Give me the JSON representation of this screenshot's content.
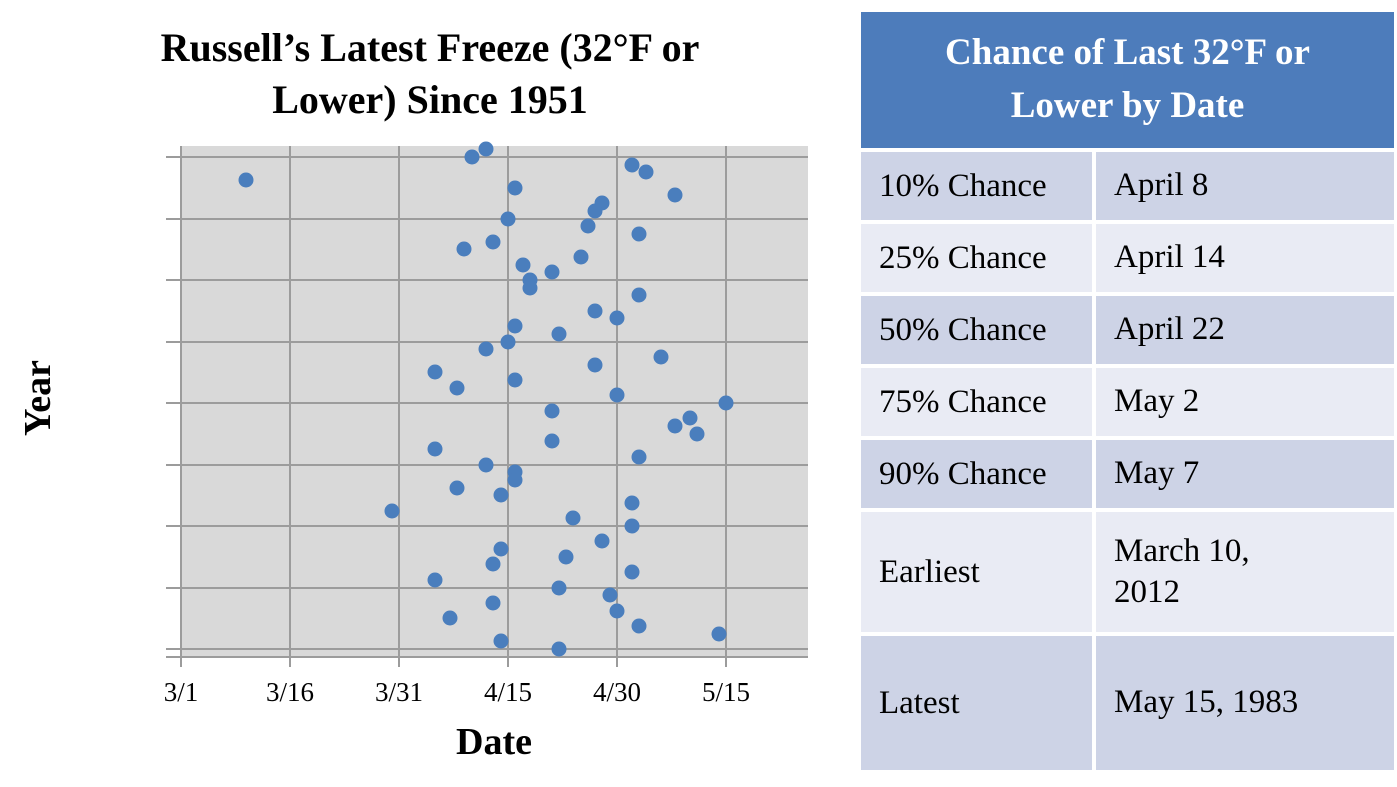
{
  "chart": {
    "title_line1": "Russell’s Latest Freeze (32°F or",
    "title_line2": "Lower) Since 1951",
    "y_axis_label": "Year",
    "x_axis_label": "Date"
  },
  "chart_data": {
    "type": "scatter",
    "title": "Russell’s Latest Freeze (32°F or Lower) Since 1951",
    "xlabel": "Date",
    "ylabel": "Year",
    "grid": true,
    "legend": false,
    "point_color": "#4a7ebd",
    "plot_bg": "#d9d9d9",
    "gridline_color": "#9c9c9c",
    "x_ticks": [
      {
        "label": "3/1",
        "day": 0
      },
      {
        "label": "3/16",
        "day": 15
      },
      {
        "label": "3/31",
        "day": 30
      },
      {
        "label": "4/15",
        "day": 45
      },
      {
        "label": "4/30",
        "day": 60
      },
      {
        "label": "5/15",
        "day": 75
      }
    ],
    "y_ticks": [
      2015,
      2007,
      1999,
      1991,
      1983,
      1975,
      1967,
      1959,
      1951
    ],
    "x_domain_note": "day = days after March 1",
    "x_domain": [
      0,
      86
    ],
    "y_domain": [
      1949.8,
      2016.4
    ],
    "points": [
      {
        "year": 2016,
        "date": "4/12",
        "day": 42
      },
      {
        "year": 2015,
        "date": "4/10",
        "day": 40
      },
      {
        "year": 2014,
        "date": "5/2",
        "day": 62
      },
      {
        "year": 2013,
        "date": "5/4",
        "day": 64
      },
      {
        "year": 2012,
        "date": "3/10",
        "day": 9
      },
      {
        "year": 2011,
        "date": "4/16",
        "day": 46
      },
      {
        "year": 2010,
        "date": "5/8",
        "day": 68
      },
      {
        "year": 2009,
        "date": "4/28",
        "day": 58
      },
      {
        "year": 2008,
        "date": "4/27",
        "day": 57
      },
      {
        "year": 2007,
        "date": "4/15",
        "day": 45
      },
      {
        "year": 2006,
        "date": "4/26",
        "day": 56
      },
      {
        "year": 2005,
        "date": "5/3",
        "day": 63
      },
      {
        "year": 2004,
        "date": "4/13",
        "day": 43
      },
      {
        "year": 2003,
        "date": "4/9",
        "day": 39
      },
      {
        "year": 2002,
        "date": "4/25",
        "day": 55
      },
      {
        "year": 2001,
        "date": "4/17",
        "day": 47
      },
      {
        "year": 2000,
        "date": "4/21",
        "day": 51
      },
      {
        "year": 1999,
        "date": "4/18",
        "day": 48
      },
      {
        "year": 1998,
        "date": "4/18",
        "day": 48
      },
      {
        "year": 1997,
        "date": "5/3",
        "day": 63
      },
      {
        "year": 1995,
        "date": "4/27",
        "day": 57
      },
      {
        "year": 1994,
        "date": "4/30",
        "day": 60
      },
      {
        "year": 1993,
        "date": "4/16",
        "day": 46
      },
      {
        "year": 1992,
        "date": "4/22",
        "day": 52
      },
      {
        "year": 1991,
        "date": "4/15",
        "day": 45
      },
      {
        "year": 1990,
        "date": "4/12",
        "day": 42
      },
      {
        "year": 1989,
        "date": "5/6",
        "day": 66
      },
      {
        "year": 1988,
        "date": "4/27",
        "day": 57
      },
      {
        "year": 1987,
        "date": "4/5",
        "day": 35
      },
      {
        "year": 1986,
        "date": "4/16",
        "day": 46
      },
      {
        "year": 1985,
        "date": "4/8",
        "day": 38
      },
      {
        "year": 1984,
        "date": "4/30",
        "day": 60
      },
      {
        "year": 1983,
        "date": "5/15",
        "day": 75
      },
      {
        "year": 1982,
        "date": "4/21",
        "day": 51
      },
      {
        "year": 1981,
        "date": "5/10",
        "day": 70
      },
      {
        "year": 1980,
        "date": "5/8",
        "day": 68
      },
      {
        "year": 1979,
        "date": "5/11",
        "day": 71
      },
      {
        "year": 1978,
        "date": "4/21",
        "day": 51
      },
      {
        "year": 1977,
        "date": "4/5",
        "day": 35
      },
      {
        "year": 1976,
        "date": "5/3",
        "day": 63
      },
      {
        "year": 1975,
        "date": "4/12",
        "day": 42
      },
      {
        "year": 1974,
        "date": "4/16",
        "day": 46
      },
      {
        "year": 1973,
        "date": "4/16",
        "day": 46
      },
      {
        "year": 1972,
        "date": "4/8",
        "day": 38
      },
      {
        "year": 1971,
        "date": "4/14",
        "day": 44
      },
      {
        "year": 1970,
        "date": "5/2",
        "day": 62
      },
      {
        "year": 1969,
        "date": "3/30",
        "day": 29
      },
      {
        "year": 1968,
        "date": "4/24",
        "day": 54
      },
      {
        "year": 1967,
        "date": "5/2",
        "day": 62
      },
      {
        "year": 1965,
        "date": "4/28",
        "day": 58
      },
      {
        "year": 1964,
        "date": "4/14",
        "day": 44
      },
      {
        "year": 1963,
        "date": "4/23",
        "day": 53
      },
      {
        "year": 1962,
        "date": "4/13",
        "day": 43
      },
      {
        "year": 1961,
        "date": "5/2",
        "day": 62
      },
      {
        "year": 1960,
        "date": "4/5",
        "day": 35
      },
      {
        "year": 1959,
        "date": "4/22",
        "day": 52
      },
      {
        "year": 1958,
        "date": "4/29",
        "day": 59
      },
      {
        "year": 1957,
        "date": "4/13",
        "day": 43
      },
      {
        "year": 1956,
        "date": "4/30",
        "day": 60
      },
      {
        "year": 1955,
        "date": "4/7",
        "day": 37
      },
      {
        "year": 1954,
        "date": "5/3",
        "day": 63
      },
      {
        "year": 1953,
        "date": "5/14",
        "day": 74
      },
      {
        "year": 1952,
        "date": "4/14",
        "day": 44
      },
      {
        "year": 1951,
        "date": "4/22",
        "day": 52
      }
    ]
  },
  "table": {
    "title_line1": "Chance of Last 32°F or",
    "title_line2": "Lower by Date",
    "header_bg": "#4d7cbb",
    "row_dark_bg": "#cdd3e6",
    "row_light_bg": "#e9ebf4",
    "rows": [
      {
        "label": "10% Chance",
        "value": "April 8"
      },
      {
        "label": "25% Chance",
        "value": "April 14"
      },
      {
        "label": "50% Chance",
        "value": "April 22"
      },
      {
        "label": "75% Chance",
        "value": "May 2"
      },
      {
        "label": "90% Chance",
        "value": "May 7"
      },
      {
        "label": "Earliest",
        "value": "March 10, 2012"
      },
      {
        "label": "Latest",
        "value": "May 15, 1983"
      }
    ]
  }
}
